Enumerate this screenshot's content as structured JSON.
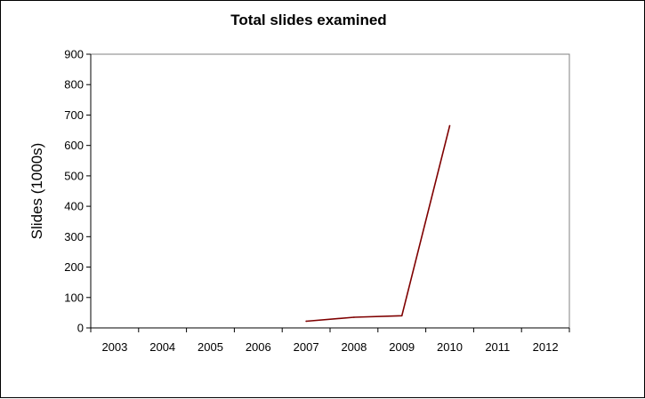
{
  "chart_data": {
    "type": "line",
    "title": "Total slides examined",
    "xlabel": "",
    "ylabel": "Slides (1000s)",
    "categories": [
      "2003",
      "2004",
      "2005",
      "2006",
      "2007",
      "2008",
      "2009",
      "2010",
      "2011",
      "2012"
    ],
    "ylim": [
      0,
      900
    ],
    "yticks": [
      0,
      100,
      200,
      300,
      400,
      500,
      600,
      700,
      800,
      900
    ],
    "grid": false,
    "legend": "none",
    "series": [
      {
        "values": [
          null,
          null,
          null,
          null,
          22,
          35,
          40,
          665,
          null,
          null
        ],
        "color": "#7f0000"
      }
    ]
  }
}
